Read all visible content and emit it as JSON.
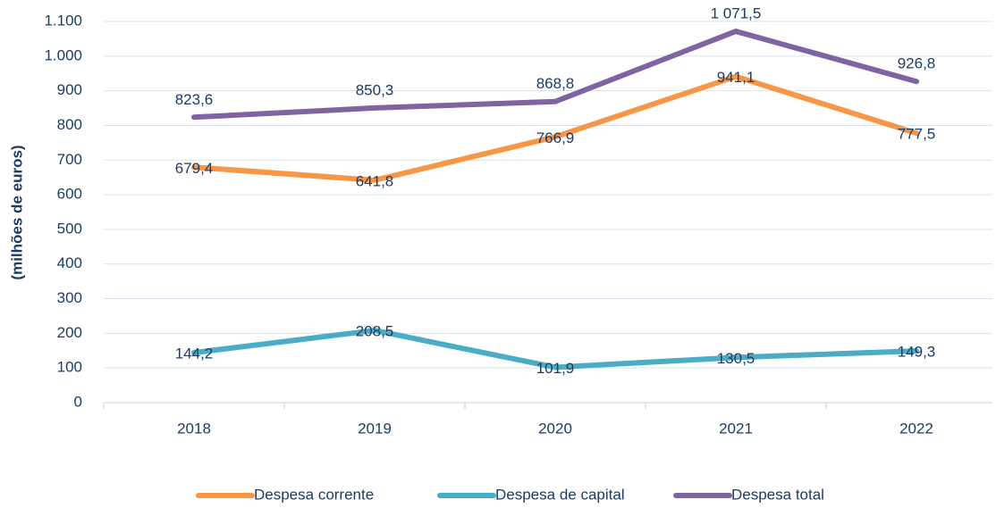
{
  "chart_data": {
    "type": "line",
    "y_label": "(milhões de euros)",
    "categories": [
      "2018",
      "2019",
      "2020",
      "2021",
      "2022"
    ],
    "series": [
      {
        "name": "Despesa corrente",
        "color": "#f79646",
        "values": [
          679.4,
          641.8,
          766.9,
          941.1,
          777.5
        ],
        "value_labels": [
          "679,4",
          "641,8",
          "766,9",
          "941,1",
          "777,5"
        ]
      },
      {
        "name": "Despesa de capital",
        "color": "#4bacc6",
        "values": [
          144.2,
          208.5,
          101.9,
          130.5,
          149.3
        ],
        "value_labels": [
          "144,2",
          "208,5",
          "101,9",
          "130,5",
          "149,3"
        ]
      },
      {
        "name": "Despesa total",
        "color": "#8064a2",
        "values": [
          823.6,
          850.3,
          868.8,
          1071.5,
          926.8
        ],
        "value_labels": [
          "823,6",
          "850,3",
          "868,8",
          "1 071,5",
          "926,8"
        ]
      }
    ],
    "ylim": [
      0,
      1100
    ],
    "yticks": [
      0,
      100,
      200,
      300,
      400,
      500,
      600,
      700,
      800,
      900,
      {
        "value": 1000,
        "label": "1.000"
      },
      {
        "value": 1100,
        "label": "1.100"
      }
    ],
    "grid": true,
    "legend": "bottom"
  }
}
